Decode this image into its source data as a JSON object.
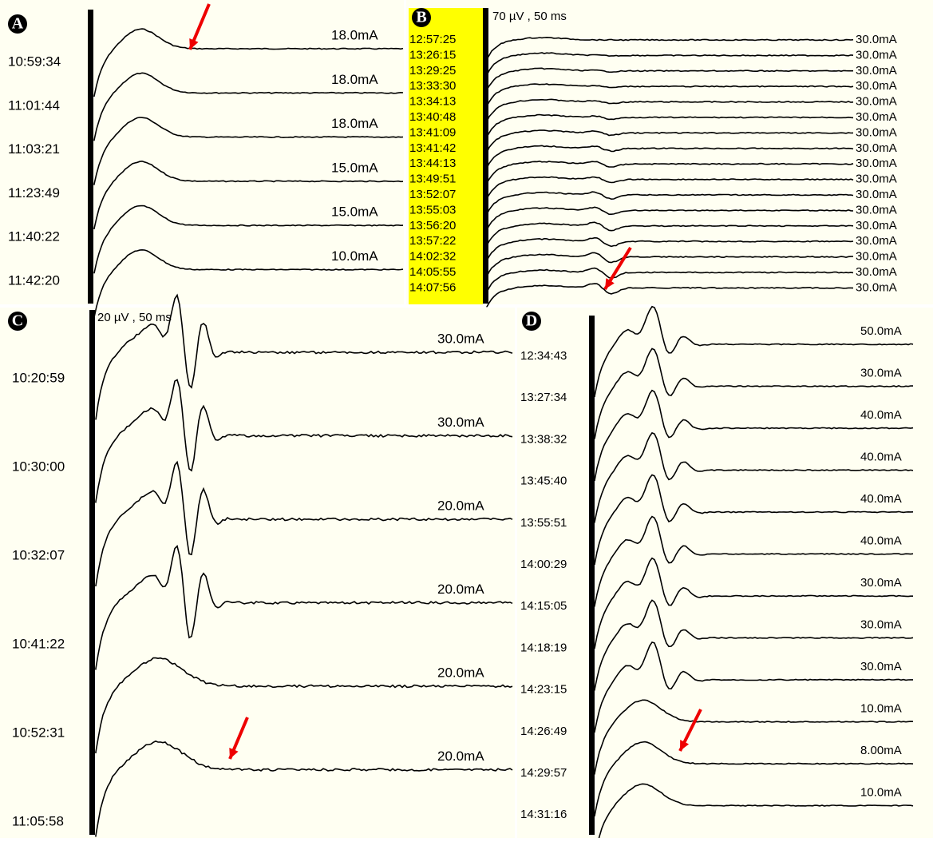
{
  "panels": [
    {
      "label": "A",
      "times": [
        "10:59:34",
        "11:01:44",
        "11:03:21",
        "11:23:49",
        "11:40:22",
        "11:42:20"
      ],
      "currents": [
        "18.0mA",
        "18.0mA",
        "18.0mA",
        "15.0mA",
        "15.0mA",
        "10.0mA"
      ]
    },
    {
      "label": "B",
      "scale": "70 µV , 50 ms",
      "times": [
        "12:57:25",
        "13:26:15",
        "13:29:25",
        "13:33:30",
        "13:34:13",
        "13:40:48",
        "13:41:09",
        "13:41:42",
        "13:44:13",
        "13:49:51",
        "13:52:07",
        "13:55:03",
        "13:56:20",
        "13:57:22",
        "14:02:32",
        "14:05:55",
        "14:07:56"
      ],
      "currents": [
        "30.0mA",
        "30.0mA",
        "30.0mA",
        "30.0mA",
        "30.0mA",
        "30.0mA",
        "30.0mA",
        "30.0mA",
        "30.0mA",
        "30.0mA",
        "30.0mA",
        "30.0mA",
        "30.0mA",
        "30.0mA",
        "30.0mA",
        "30.0mA",
        "30.0mA"
      ]
    },
    {
      "label": "C",
      "scale": "20 µV , 50 ms",
      "times": [
        "10:20:59",
        "10:30:00",
        "10:32:07",
        "10:41:22",
        "10:52:31",
        "11:05:58"
      ],
      "currents": [
        "30.0mA",
        "30.0mA",
        "20.0mA",
        "20.0mA",
        "20.0mA",
        "20.0mA"
      ]
    },
    {
      "label": "D",
      "times": [
        "12:34:43",
        "13:27:34",
        "13:38:32",
        "13:45:40",
        "13:55:51",
        "14:00:29",
        "14:15:05",
        "14:18:19",
        "14:23:15",
        "14:26:49",
        "14:29:57",
        "14:31:16"
      ],
      "currents": [
        "50.0mA",
        "30.0mA",
        "40.0mA",
        "40.0mA",
        "40.0mA",
        "40.0mA",
        "30.0mA",
        "30.0mA",
        "30.0mA",
        "10.0mA",
        "8.00mA",
        "10.0mA"
      ]
    }
  ]
}
